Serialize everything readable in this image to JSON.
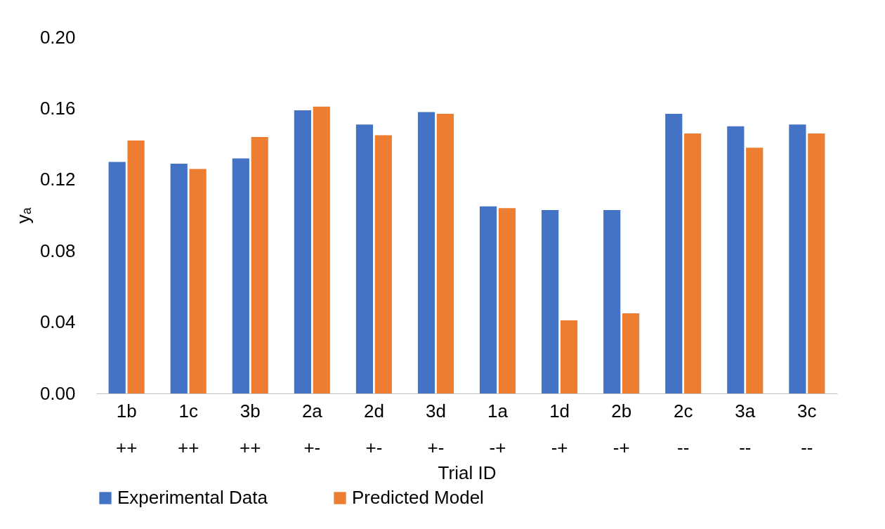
{
  "chart_data": {
    "type": "bar",
    "xlabel": "Trial ID",
    "ylabel": "yₐ",
    "categories": [
      "1b\n++",
      "1c\n++",
      "3b\n++",
      "2a\n+-",
      "2d\n+-",
      "3d\n+-",
      "1a\n-+",
      "1d\n-+",
      "2b\n-+",
      "2c\n--",
      "3a\n--",
      "3c\n--"
    ],
    "series": [
      {
        "name": "Experimental Data",
        "color": "#4472c4",
        "values": [
          0.13,
          0.129,
          0.132,
          0.159,
          0.151,
          0.158,
          0.105,
          0.103,
          0.103,
          0.157,
          0.15,
          0.151
        ]
      },
      {
        "name": "Predicted Model",
        "color": "#ed7d31",
        "values": [
          0.142,
          0.126,
          0.144,
          0.161,
          0.145,
          0.157,
          0.104,
          0.041,
          0.045,
          0.146,
          0.138,
          0.146
        ]
      }
    ],
    "ylim": [
      0,
      0.2
    ],
    "yticks": [
      {
        "value": 0,
        "label": "0.00"
      },
      {
        "value": 0.04,
        "label": "0.04"
      },
      {
        "value": 0.08,
        "label": "0.08"
      },
      {
        "value": 0.12,
        "label": "0.12"
      },
      {
        "value": 0.16,
        "label": "0.16"
      },
      {
        "value": 0.2,
        "label": "0.20"
      }
    ],
    "grid": false,
    "legend": "bottom"
  }
}
